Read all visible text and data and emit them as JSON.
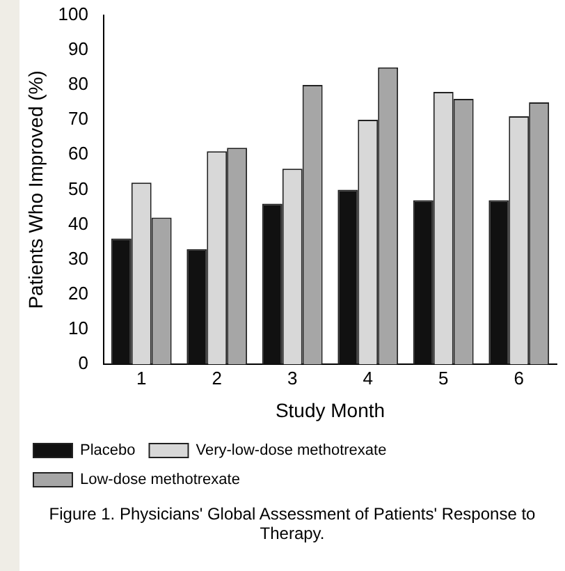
{
  "chart_data": {
    "type": "bar",
    "title": "Figure 1. Physicians' Global Assessment of Patients' Response to Therapy.",
    "xlabel": "Study Month",
    "ylabel": "Patients Who Improved (%)",
    "categories": [
      "1",
      "2",
      "3",
      "4",
      "5",
      "6"
    ],
    "series": [
      {
        "name": "Placebo",
        "color": "#111111",
        "values": [
          36,
          33,
          46,
          50,
          47,
          47
        ]
      },
      {
        "name": "Very-low-dose methotrexate",
        "color": "#d8d8d8",
        "values": [
          52,
          61,
          56,
          70,
          78,
          71
        ]
      },
      {
        "name": "Low-dose methotrexate",
        "color": "#a6a6a6",
        "values": [
          42,
          62,
          80,
          85,
          76,
          75
        ]
      }
    ],
    "ylim": [
      0,
      100
    ],
    "yticks": [
      0,
      10,
      20,
      30,
      40,
      50,
      60,
      70,
      80,
      90,
      100
    ],
    "grid": false,
    "legend": "bottom"
  }
}
